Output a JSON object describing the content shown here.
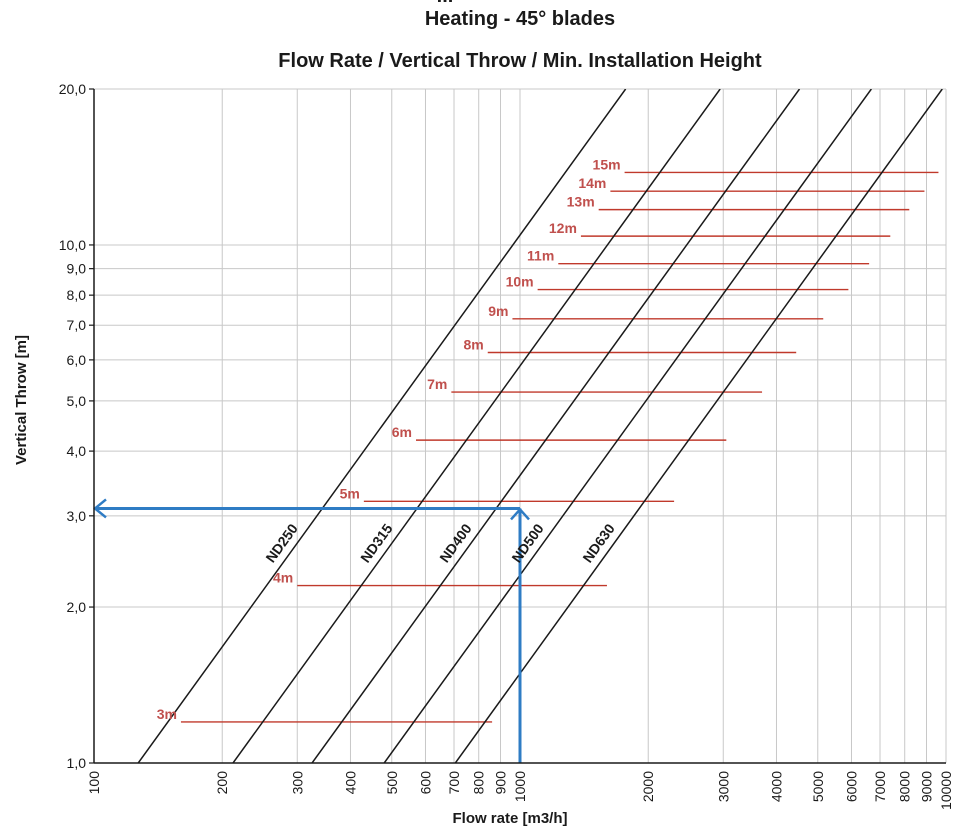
{
  "chart_data": {
    "type": "line",
    "title_lines": [
      "Heating - 45° blades",
      "Flow Rate / Vertical Throw / Min. Installation Height"
    ],
    "title_partial": "...",
    "xlabel": "Flow rate [m3/h]",
    "ylabel": "Vertical Throw [m]",
    "x_scale": "log",
    "y_scale": "log",
    "xlim": [
      100,
      10000
    ],
    "ylim": [
      1.0,
      20.0
    ],
    "grid": true,
    "x_ticks": [
      {
        "value": 100,
        "label": "100"
      },
      {
        "value": 200,
        "label": "200"
      },
      {
        "value": 300,
        "label": "300"
      },
      {
        "value": 400,
        "label": "400"
      },
      {
        "value": 500,
        "label": "500"
      },
      {
        "value": 600,
        "label": "600"
      },
      {
        "value": 700,
        "label": "700"
      },
      {
        "value": 800,
        "label": "800"
      },
      {
        "value": 900,
        "label": "900"
      },
      {
        "value": 1000,
        "label": "1000"
      },
      {
        "value": 2000,
        "label": "2000"
      },
      {
        "value": 3000,
        "label": "3000"
      },
      {
        "value": 4000,
        "label": "4000"
      },
      {
        "value": 5000,
        "label": "5000"
      },
      {
        "value": 6000,
        "label": "6000"
      },
      {
        "value": 7000,
        "label": "7000"
      },
      {
        "value": 8000,
        "label": "8000"
      },
      {
        "value": 9000,
        "label": "9000"
      },
      {
        "value": 10000,
        "label": "10000"
      }
    ],
    "y_ticks": [
      {
        "value": 1,
        "label": "1,0"
      },
      {
        "value": 2,
        "label": "2,0"
      },
      {
        "value": 3,
        "label": "3,0"
      },
      {
        "value": 4,
        "label": "4,0"
      },
      {
        "value": 5,
        "label": "5,0"
      },
      {
        "value": 6,
        "label": "6,0"
      },
      {
        "value": 7,
        "label": "7,0"
      },
      {
        "value": 8,
        "label": "8,0"
      },
      {
        "value": 9,
        "label": "9,0"
      },
      {
        "value": 10,
        "label": "10,0"
      },
      {
        "value": 20,
        "label": "20,0"
      }
    ],
    "series": [
      {
        "name": "ND250",
        "color": "#1a1a1a",
        "label_at": 2.6,
        "x": [
          127,
          1770
        ],
        "y": [
          1.0,
          20.0
        ]
      },
      {
        "name": "ND315",
        "color": "#1a1a1a",
        "label_at": 2.6,
        "x": [
          212,
          2950
        ],
        "y": [
          1.0,
          20.0
        ]
      },
      {
        "name": "ND400",
        "color": "#1a1a1a",
        "label_at": 2.6,
        "x": [
          325,
          4530
        ],
        "y": [
          1.0,
          20.0
        ]
      },
      {
        "name": "ND500",
        "color": "#1a1a1a",
        "label_at": 2.6,
        "x": [
          480,
          6680
        ],
        "y": [
          1.0,
          20.0
        ]
      },
      {
        "name": "ND630",
        "color": "#1a1a1a",
        "label_at": 2.6,
        "x": [
          705,
          9800
        ],
        "y": [
          1.0,
          20.0
        ]
      }
    ],
    "installation_heights": [
      {
        "label": "3m",
        "y": 1.2,
        "x_start": 160,
        "x_end": 860
      },
      {
        "label": "4m",
        "y": 2.2,
        "x_start": 300,
        "x_end": 1600
      },
      {
        "label": "5m",
        "y": 3.2,
        "x_start": 430,
        "x_end": 2300
      },
      {
        "label": "6m",
        "y": 4.2,
        "x_start": 570,
        "x_end": 3050
      },
      {
        "label": "7m",
        "y": 5.2,
        "x_start": 690,
        "x_end": 3700
      },
      {
        "label": "8m",
        "y": 6.2,
        "x_start": 840,
        "x_end": 4450
      },
      {
        "label": "9m",
        "y": 7.2,
        "x_start": 960,
        "x_end": 5150
      },
      {
        "label": "10m",
        "y": 8.2,
        "x_start": 1100,
        "x_end": 5900
      },
      {
        "label": "11m",
        "y": 9.2,
        "x_start": 1230,
        "x_end": 6600
      },
      {
        "label": "12m",
        "y": 10.4,
        "x_start": 1390,
        "x_end": 7400
      },
      {
        "label": "13m",
        "y": 11.7,
        "x_start": 1530,
        "x_end": 8200
      },
      {
        "label": "14m",
        "y": 12.7,
        "x_start": 1630,
        "x_end": 8900
      },
      {
        "label": "15m",
        "y": 13.8,
        "x_start": 1760,
        "x_end": 9600
      }
    ],
    "example_path": {
      "x_start": 1000,
      "y_start": 1.0,
      "corner_x": 1000,
      "corner_y": 3.1,
      "x_end": 100,
      "y_end": 3.1
    },
    "colors": {
      "axis": "#1a1a1a",
      "grid": "#c8c8c8",
      "duct_line": "#1a1a1a",
      "height_line": "#c0392b",
      "height_label": "#c0504d",
      "example_arrow": "#2f7cc4"
    }
  }
}
